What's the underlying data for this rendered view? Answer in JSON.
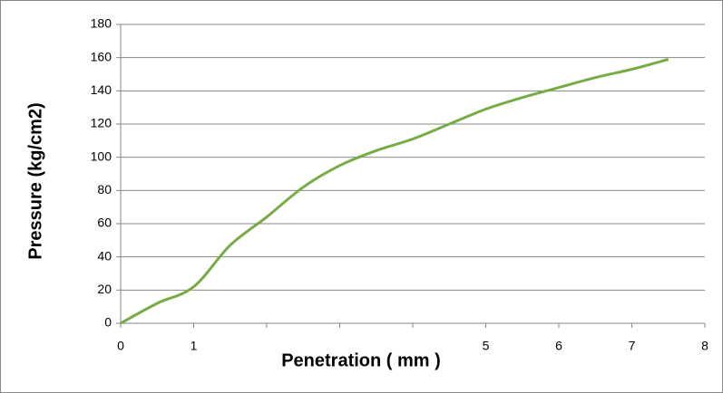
{
  "chart_data": {
    "type": "line",
    "x_label": "Penetration ( mm )",
    "y_label": "Pressure (kg/cm2)",
    "x": [
      0,
      0.5,
      1,
      1.5,
      2,
      2.5,
      3,
      3.5,
      4,
      4.5,
      5,
      5.5,
      6,
      6.5,
      7,
      7.5
    ],
    "series": [
      {
        "color": "#77ab46",
        "values": [
          0,
          12,
          22,
          47,
          64,
          82,
          95,
          104,
          111,
          120,
          129,
          136,
          142,
          148,
          153,
          159
        ]
      }
    ],
    "xlim": [
      0,
      8
    ],
    "xticks": [
      0,
      1,
      {
        "value": 2,
        "label": null
      },
      {
        "value": 3,
        "label": null
      },
      {
        "value": 4,
        "label": null
      },
      5,
      6,
      7,
      8
    ],
    "ylim": [
      0,
      180
    ],
    "yticks": [
      0,
      20,
      40,
      60,
      80,
      100,
      120,
      140,
      160,
      180
    ],
    "grid": true
  }
}
